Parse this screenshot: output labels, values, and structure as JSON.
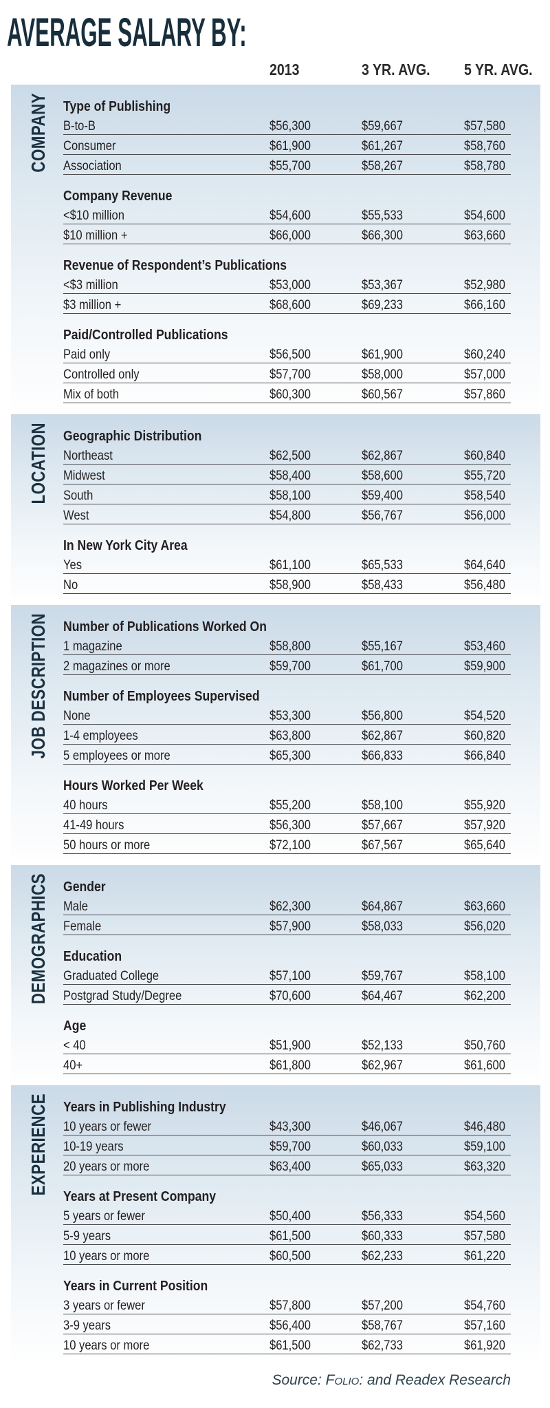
{
  "title": "AVERAGE SALARY BY:",
  "columns": [
    "2013",
    "3 YR. AVG.",
    "5 YR. AVG."
  ],
  "source": {
    "prefix": "Source: ",
    "brand": "Folio:",
    "suffix": " and Readex Research"
  },
  "colors": {
    "navy": "#1b3140",
    "block_top_blue": "#cbdae8",
    "text": "#231f20",
    "rule": "#4b4b4d"
  },
  "sections": [
    {
      "label": "COMPANY",
      "groups": [
        {
          "heading": "Type of Publishing",
          "rows": [
            {
              "label": "B-to-B",
              "values": [
                "$56,300",
                "$59,667",
                "$57,580"
              ]
            },
            {
              "label": "Consumer",
              "values": [
                "$61,900",
                "$61,267",
                "$58,760"
              ]
            },
            {
              "label": "Association",
              "values": [
                "$55,700",
                "$58,267",
                "$58,780"
              ]
            }
          ]
        },
        {
          "heading": "Company Revenue",
          "rows": [
            {
              "label": "<$10 million",
              "values": [
                "$54,600",
                "$55,533",
                "$54,600"
              ]
            },
            {
              "label": "$10 million +",
              "values": [
                "$66,000",
                "$66,300",
                "$63,660"
              ]
            }
          ]
        },
        {
          "heading": "Revenue of Respondent’s Publications",
          "rows": [
            {
              "label": "<$3 million",
              "values": [
                "$53,000",
                "$53,367",
                "$52,980"
              ]
            },
            {
              "label": "$3 million +",
              "values": [
                "$68,600",
                "$69,233",
                "$66,160"
              ]
            }
          ]
        },
        {
          "heading": "Paid/Controlled Publications",
          "rows": [
            {
              "label": "Paid only",
              "values": [
                "$56,500",
                "$61,900",
                "$60,240"
              ]
            },
            {
              "label": "Controlled only",
              "values": [
                "$57,700",
                "$58,000",
                "$57,000"
              ]
            },
            {
              "label": "Mix of both",
              "values": [
                "$60,300",
                "$60,567",
                "$57,860"
              ]
            }
          ]
        }
      ]
    },
    {
      "label": "LOCATION",
      "groups": [
        {
          "heading": "Geographic Distribution",
          "rows": [
            {
              "label": "Northeast",
              "values": [
                "$62,500",
                "$62,867",
                "$60,840"
              ]
            },
            {
              "label": "Midwest",
              "values": [
                "$58,400",
                "$58,600",
                "$55,720"
              ]
            },
            {
              "label": "South",
              "values": [
                "$58,100",
                "$59,400",
                "$58,540"
              ]
            },
            {
              "label": "West",
              "values": [
                "$54,800",
                "$56,767",
                "$56,000"
              ]
            }
          ]
        },
        {
          "heading": "In New York City Area",
          "rows": [
            {
              "label": "Yes",
              "values": [
                "$61,100",
                "$65,533",
                "$64,640"
              ]
            },
            {
              "label": "No",
              "values": [
                "$58,900",
                "$58,433",
                "$56,480"
              ]
            }
          ]
        }
      ]
    },
    {
      "label": "JOB DESCRIPTION",
      "groups": [
        {
          "heading": "Number of Publications Worked On",
          "rows": [
            {
              "label": "1 magazine",
              "values": [
                "$58,800",
                "$55,167",
                "$53,460"
              ]
            },
            {
              "label": "2 magazines or more",
              "values": [
                "$59,700",
                "$61,700",
                "$59,900"
              ]
            }
          ]
        },
        {
          "heading": "Number of Employees Supervised",
          "rows": [
            {
              "label": "None",
              "values": [
                "$53,300",
                "$56,800",
                "$54,520"
              ]
            },
            {
              "label": "1-4 employees",
              "values": [
                "$63,800",
                "$62,867",
                "$60,820"
              ]
            },
            {
              "label": "5 employees or more",
              "values": [
                "$65,300",
                "$66,833",
                "$66,840"
              ]
            }
          ]
        },
        {
          "heading": "Hours Worked Per Week",
          "rows": [
            {
              "label": "40 hours",
              "values": [
                "$55,200",
                "$58,100",
                "$55,920"
              ]
            },
            {
              "label": "41-49 hours",
              "values": [
                "$56,300",
                "$57,667",
                "$57,920"
              ]
            },
            {
              "label": "50 hours or more",
              "values": [
                "$72,100",
                "$67,567",
                "$65,640"
              ]
            }
          ]
        }
      ]
    },
    {
      "label": "DEMOGRAPHICS",
      "groups": [
        {
          "heading": "Gender",
          "rows": [
            {
              "label": "Male",
              "values": [
                "$62,300",
                "$64,867",
                "$63,660"
              ]
            },
            {
              "label": "Female",
              "values": [
                "$57,900",
                "$58,033",
                "$56,020"
              ]
            }
          ]
        },
        {
          "heading": "Education",
          "rows": [
            {
              "label": "Graduated College",
              "values": [
                "$57,100",
                "$59,767",
                "$58,100"
              ]
            },
            {
              "label": "Postgrad Study/Degree",
              "values": [
                "$70,600",
                "$64,467",
                "$62,200"
              ]
            }
          ]
        },
        {
          "heading": "Age",
          "rows": [
            {
              "label": "< 40",
              "values": [
                "$51,900",
                "$52,133",
                "$50,760"
              ]
            },
            {
              "label": "40+",
              "values": [
                "$61,800",
                "$62,967",
                "$61,600"
              ]
            }
          ]
        }
      ]
    },
    {
      "label": "EXPERIENCE",
      "groups": [
        {
          "heading": "Years in Publishing Industry",
          "rows": [
            {
              "label": "10 years or fewer",
              "values": [
                "$43,300",
                "$46,067",
                "$46,480"
              ]
            },
            {
              "label": "10-19 years",
              "values": [
                "$59,700",
                "$60,033",
                "$59,100"
              ]
            },
            {
              "label": "20 years or more",
              "values": [
                "$63,400",
                "$65,033",
                "$63,320"
              ]
            }
          ]
        },
        {
          "heading": "Years at Present Company",
          "rows": [
            {
              "label": "5 years or fewer",
              "values": [
                "$50,400",
                "$56,333",
                "$54,560"
              ]
            },
            {
              "label": "5-9 years",
              "values": [
                "$61,500",
                "$60,333",
                "$57,580"
              ]
            },
            {
              "label": "10 years or more",
              "values": [
                "$60,500",
                "$62,233",
                "$61,220"
              ]
            }
          ]
        },
        {
          "heading": "Years in Current Position",
          "rows": [
            {
              "label": "3 years or fewer",
              "values": [
                "$57,800",
                "$57,200",
                "$54,760"
              ]
            },
            {
              "label": "3-9 years",
              "values": [
                "$56,400",
                "$58,767",
                "$57,160"
              ]
            },
            {
              "label": "10 years or more",
              "values": [
                "$61,500",
                "$62,733",
                "$61,920"
              ]
            }
          ]
        }
      ]
    }
  ],
  "chart_data": {
    "type": "table",
    "title": "AVERAGE SALARY BY:",
    "columns": [
      "2013",
      "3 YR. AVG.",
      "5 YR. AVG."
    ],
    "sections": [
      {
        "section": "COMPANY",
        "groups": [
          {
            "name": "Type of Publishing",
            "rows": [
              {
                "label": "B-to-B",
                "values": [
                  56300,
                  59667,
                  57580
                ]
              },
              {
                "label": "Consumer",
                "values": [
                  61900,
                  61267,
                  58760
                ]
              },
              {
                "label": "Association",
                "values": [
                  55700,
                  58267,
                  58780
                ]
              }
            ]
          },
          {
            "name": "Company Revenue",
            "rows": [
              {
                "label": "<$10 million",
                "values": [
                  54600,
                  55533,
                  54600
                ]
              },
              {
                "label": "$10 million +",
                "values": [
                  66000,
                  66300,
                  63660
                ]
              }
            ]
          },
          {
            "name": "Revenue of Respondent’s Publications",
            "rows": [
              {
                "label": "<$3 million",
                "values": [
                  53000,
                  53367,
                  52980
                ]
              },
              {
                "label": "$3 million +",
                "values": [
                  68600,
                  69233,
                  66160
                ]
              }
            ]
          },
          {
            "name": "Paid/Controlled Publications",
            "rows": [
              {
                "label": "Paid only",
                "values": [
                  56500,
                  61900,
                  60240
                ]
              },
              {
                "label": "Controlled only",
                "values": [
                  57700,
                  58000,
                  57000
                ]
              },
              {
                "label": "Mix of both",
                "values": [
                  60300,
                  60567,
                  57860
                ]
              }
            ]
          }
        ]
      },
      {
        "section": "LOCATION",
        "groups": [
          {
            "name": "Geographic Distribution",
            "rows": [
              {
                "label": "Northeast",
                "values": [
                  62500,
                  62867,
                  60840
                ]
              },
              {
                "label": "Midwest",
                "values": [
                  58400,
                  58600,
                  55720
                ]
              },
              {
                "label": "South",
                "values": [
                  58100,
                  59400,
                  58540
                ]
              },
              {
                "label": "West",
                "values": [
                  54800,
                  56767,
                  56000
                ]
              }
            ]
          },
          {
            "name": "In New York City Area",
            "rows": [
              {
                "label": "Yes",
                "values": [
                  61100,
                  65533,
                  64640
                ]
              },
              {
                "label": "No",
                "values": [
                  58900,
                  58433,
                  56480
                ]
              }
            ]
          }
        ]
      },
      {
        "section": "JOB DESCRIPTION",
        "groups": [
          {
            "name": "Number of Publications Worked On",
            "rows": [
              {
                "label": "1 magazine",
                "values": [
                  58800,
                  55167,
                  53460
                ]
              },
              {
                "label": "2 magazines or more",
                "values": [
                  59700,
                  61700,
                  59900
                ]
              }
            ]
          },
          {
            "name": "Number of Employees Supervised",
            "rows": [
              {
                "label": "None",
                "values": [
                  53300,
                  56800,
                  54520
                ]
              },
              {
                "label": "1-4 employees",
                "values": [
                  63800,
                  62867,
                  60820
                ]
              },
              {
                "label": "5 employees or more",
                "values": [
                  65300,
                  66833,
                  66840
                ]
              }
            ]
          },
          {
            "name": "Hours Worked Per Week",
            "rows": [
              {
                "label": "40 hours",
                "values": [
                  55200,
                  58100,
                  55920
                ]
              },
              {
                "label": "41-49 hours",
                "values": [
                  56300,
                  57667,
                  57920
                ]
              },
              {
                "label": "50 hours or more",
                "values": [
                  72100,
                  67567,
                  65640
                ]
              }
            ]
          }
        ]
      },
      {
        "section": "DEMOGRAPHICS",
        "groups": [
          {
            "name": "Gender",
            "rows": [
              {
                "label": "Male",
                "values": [
                  62300,
                  64867,
                  63660
                ]
              },
              {
                "label": "Female",
                "values": [
                  57900,
                  58033,
                  56020
                ]
              }
            ]
          },
          {
            "name": "Education",
            "rows": [
              {
                "label": "Graduated College",
                "values": [
                  57100,
                  59767,
                  58100
                ]
              },
              {
                "label": "Postgrad Study/Degree",
                "values": [
                  70600,
                  64467,
                  62200
                ]
              }
            ]
          },
          {
            "name": "Age",
            "rows": [
              {
                "label": "< 40",
                "values": [
                  51900,
                  52133,
                  50760
                ]
              },
              {
                "label": "40+",
                "values": [
                  61800,
                  62967,
                  61600
                ]
              }
            ]
          }
        ]
      },
      {
        "section": "EXPERIENCE",
        "groups": [
          {
            "name": "Years in Publishing Industry",
            "rows": [
              {
                "label": "10 years or fewer",
                "values": [
                  43300,
                  46067,
                  46480
                ]
              },
              {
                "label": "10-19 years",
                "values": [
                  59700,
                  60033,
                  59100
                ]
              },
              {
                "label": "20 years or more",
                "values": [
                  63400,
                  65033,
                  63320
                ]
              }
            ]
          },
          {
            "name": "Years at Present Company",
            "rows": [
              {
                "label": "5 years or fewer",
                "values": [
                  50400,
                  56333,
                  54560
                ]
              },
              {
                "label": "5-9 years",
                "values": [
                  61500,
                  60333,
                  57580
                ]
              },
              {
                "label": "10 years or more",
                "values": [
                  60500,
                  62233,
                  61220
                ]
              }
            ]
          },
          {
            "name": "Years in Current Position",
            "rows": [
              {
                "label": "3 years or fewer",
                "values": [
                  57800,
                  57200,
                  54760
                ]
              },
              {
                "label": "3-9 years",
                "values": [
                  56400,
                  58767,
                  57160
                ]
              },
              {
                "label": "10 years or more",
                "values": [
                  61500,
                  62733,
                  61920
                ]
              }
            ]
          }
        ]
      }
    ]
  }
}
